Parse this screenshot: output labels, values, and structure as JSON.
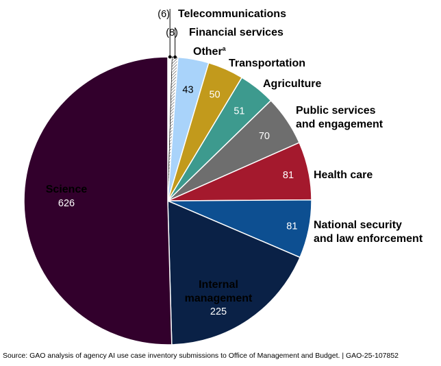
{
  "chart_data": {
    "type": "pie",
    "slices": [
      {
        "label": "Telecommunications",
        "value": 6,
        "color": "#ffffff",
        "value_display": "(6)"
      },
      {
        "label": "Financial services",
        "value": 8,
        "color": "#ffffff",
        "value_display": "(8)"
      },
      {
        "label": "Other",
        "label_sup": "a",
        "value": 43,
        "color": "#a9d3fa",
        "value_display": "43"
      },
      {
        "label": "Transportation",
        "value": 50,
        "color": "#c29a1c",
        "value_display": "50"
      },
      {
        "label": "Agriculture",
        "value": 51,
        "color": "#3d9a8e",
        "value_display": "51"
      },
      {
        "label_lines": [
          "Public services",
          "and engagement"
        ],
        "value": 70,
        "color": "#6e6e6e",
        "value_display": "70"
      },
      {
        "label": "Health care",
        "value": 81,
        "color": "#a4192d",
        "value_display": "81"
      },
      {
        "label_lines": [
          "National security",
          "and law enforcement"
        ],
        "value": 81,
        "color": "#0d4f91",
        "value_display": "81"
      },
      {
        "label_lines": [
          "Internal",
          "management"
        ],
        "value": 225,
        "color": "#0a2146",
        "value_display": "225"
      },
      {
        "label": "Science",
        "value": 626,
        "color": "#32002c",
        "value_display": "626"
      }
    ]
  },
  "source": "Source: GAO analysis of agency AI use case inventory submissions to Office of Management and Budget.  |  GAO-25-107852"
}
